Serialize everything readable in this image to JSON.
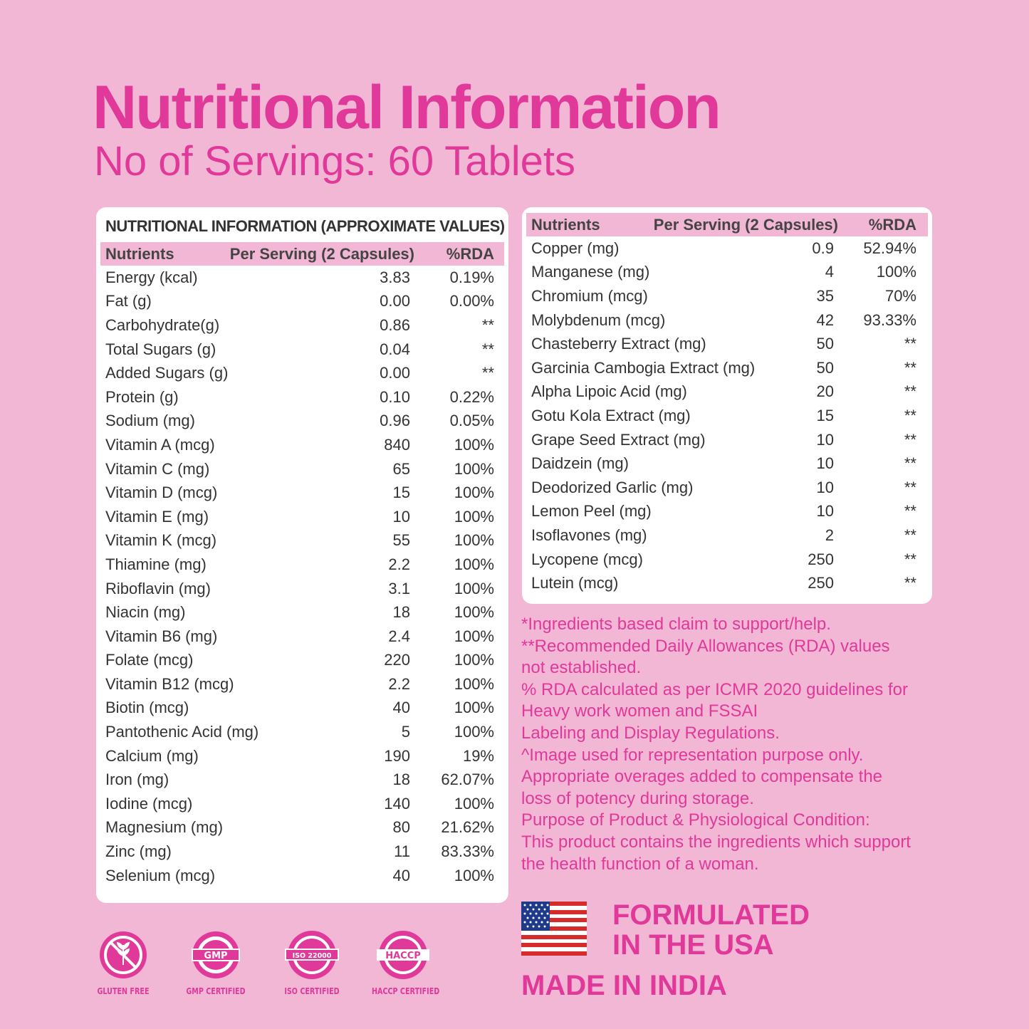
{
  "title": "Nutritional Information",
  "subtitle": "No of Servings: 60 Tablets",
  "left_table": {
    "heading": "NUTRITIONAL INFORMATION (APPROXIMATE VALUES)",
    "headers": [
      "Nutrients",
      "Per Serving (2 Capsules)",
      "%RDA"
    ],
    "rows": [
      [
        "Energy (kcal)",
        "3.83",
        "0.19%"
      ],
      [
        "Fat (g)",
        "0.00",
        "0.00%"
      ],
      [
        "Carbohydrate(g)",
        "0.86",
        "**"
      ],
      [
        "Total Sugars (g)",
        "0.04",
        "**"
      ],
      [
        "Added Sugars (g)",
        "0.00",
        "**"
      ],
      [
        "Protein (g)",
        "0.10",
        "0.22%"
      ],
      [
        "Sodium (mg)",
        "0.96",
        "0.05%"
      ],
      [
        "Vitamin A (mcg)",
        "840",
        "100%"
      ],
      [
        "Vitamin C (mg)",
        "65",
        "100%"
      ],
      [
        "Vitamin D (mcg)",
        "15",
        "100%"
      ],
      [
        "Vitamin E (mg)",
        "10",
        "100%"
      ],
      [
        "Vitamin K (mcg)",
        "55",
        "100%"
      ],
      [
        "Thiamine (mg)",
        "2.2",
        "100%"
      ],
      [
        "Riboflavin (mg)",
        "3.1",
        "100%"
      ],
      [
        "Niacin (mg)",
        "18",
        "100%"
      ],
      [
        "Vitamin B6 (mg)",
        "2.4",
        "100%"
      ],
      [
        "Folate (mcg)",
        "220",
        "100%"
      ],
      [
        "Vitamin B12 (mcg)",
        "2.2",
        "100%"
      ],
      [
        "Biotin (mcg)",
        "40",
        "100%"
      ],
      [
        "Pantothenic Acid (mg)",
        "5",
        "100%"
      ],
      [
        "Calcium (mg)",
        "190",
        "19%"
      ],
      [
        "Iron (mg)",
        "18",
        "62.07%"
      ],
      [
        "Iodine (mcg)",
        "140",
        "100%"
      ],
      [
        "Magnesium (mg)",
        "80",
        "21.62%"
      ],
      [
        "Zinc (mg)",
        "11",
        "83.33%"
      ],
      [
        "Selenium (mcg)",
        "40",
        "100%"
      ]
    ]
  },
  "right_table": {
    "headers": [
      "Nutrients",
      "Per Serving (2 Capsules)",
      "%RDA"
    ],
    "rows": [
      [
        "Copper (mg)",
        "0.9",
        "52.94%"
      ],
      [
        "Manganese (mg)",
        "4",
        "100%"
      ],
      [
        "Chromium (mcg)",
        "35",
        "70%"
      ],
      [
        "Molybdenum (mcg)",
        "42",
        "93.33%"
      ],
      [
        "Chasteberry Extract (mg)",
        "50",
        "**"
      ],
      [
        "Garcinia Cambogia Extract (mg)",
        "50",
        "**"
      ],
      [
        "Alpha Lipoic Acid (mg)",
        "20",
        "**"
      ],
      [
        "Gotu Kola Extract (mg)",
        "15",
        "**"
      ],
      [
        "Grape Seed Extract (mg)",
        "10",
        "**"
      ],
      [
        "Daidzein (mg)",
        "10",
        "**"
      ],
      [
        "Deodorized Garlic (mg)",
        "10",
        "**"
      ],
      [
        "Lemon Peel (mg)",
        "10",
        "**"
      ],
      [
        "Isoflavones (mg)",
        "2",
        "**"
      ],
      [
        "Lycopene (mcg)",
        "250",
        "**"
      ],
      [
        "Lutein (mcg)",
        "250",
        "**"
      ]
    ]
  },
  "notes": [
    "*Ingredients based claim to support/help.",
    "**Recommended Daily Allowances (RDA) values",
    "not established.",
    "% RDA calculated as per ICMR 2020 guidelines for",
    "Heavy work women and FSSAI",
    "Labeling and Display Regulations.",
    "^Image used for representation purpose only.",
    "Appropriate overages added to compensate the",
    "loss of potency during storage.",
    "Purpose of Product & Physiological Condition:",
    "This product contains the ingredients which support",
    "the health function of a woman."
  ],
  "badges": [
    {
      "label": "GLUTEN FREE",
      "icon": "gluten-free-icon"
    },
    {
      "label": "GMP CERTIFIED",
      "icon": "gmp-seal-icon",
      "seal_text": "GMP"
    },
    {
      "label": "ISO CERTIFIED",
      "icon": "iso-seal-icon",
      "seal_text": "ISO 22000"
    },
    {
      "label": "HACCP CERTIFIED",
      "icon": "haccp-seal-icon",
      "seal_text": "HACCP"
    }
  ],
  "origin": {
    "formulated_line1": "FORMULATED",
    "formulated_line2": "IN THE USA",
    "made_in": "MADE IN INDIA"
  },
  "colors": {
    "background": "#f3b7d6",
    "accent": "#e0399a",
    "card": "#ffffff"
  }
}
